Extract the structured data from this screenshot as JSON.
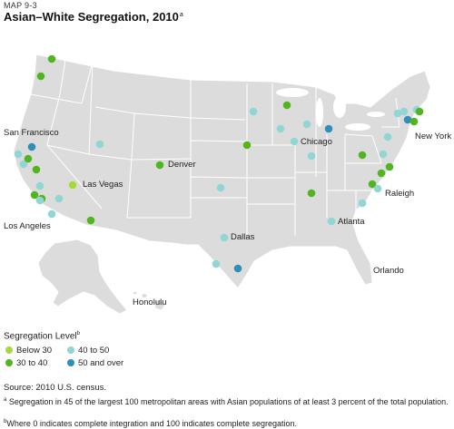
{
  "header": {
    "map_label": "MAP 9-3",
    "title": "Asian–White Segregation, 2010",
    "title_sup": "a"
  },
  "colors": {
    "below30": "#a6d93a",
    "c30to40": "#52b520",
    "c40to50": "#8fd6d4",
    "c50plus": "#2f8fb8",
    "land": "#dcdcdc",
    "border": "#ffffff",
    "water": "#ffffff"
  },
  "cities": [
    {
      "name": "San Francisco"
    },
    {
      "name": "Las Vegas"
    },
    {
      "name": "Los Angeles"
    },
    {
      "name": "Denver"
    },
    {
      "name": "Chicago"
    },
    {
      "name": "New York"
    },
    {
      "name": "Raleigh"
    },
    {
      "name": "Atlanta"
    },
    {
      "name": "Dallas"
    },
    {
      "name": "Orlando"
    },
    {
      "name": "Honolulu"
    }
  ],
  "legend": {
    "title": "Segregation Level",
    "title_sup": "b",
    "items": [
      {
        "label": "Below 30",
        "color_key": "below30"
      },
      {
        "label": "30 to 40",
        "color_key": "c30to40"
      },
      {
        "label": "40 to 50",
        "color_key": "c40to50"
      },
      {
        "label": "50 and over",
        "color_key": "c50plus"
      }
    ]
  },
  "source": "Source: 2010 U.S. census.",
  "notes": {
    "a_marker": "a",
    "a": "Segregation in 45 of the largest 100 metropolitan areas with Asian populations of at least 3 percent of the total population.",
    "b_marker": "b",
    "b": "Where 0 indicates complete integration and 100 indicates complete segregation."
  },
  "metro_points": [
    {
      "level": "c30to40"
    },
    {
      "level": "c30to40"
    },
    {
      "level": "c50plus"
    },
    {
      "level": "c40to50"
    },
    {
      "level": "c40to50"
    },
    {
      "level": "c30to40"
    },
    {
      "level": "c30to40"
    },
    {
      "level": "c40to50"
    },
    {
      "level": "c30to40"
    },
    {
      "level": "c30to40"
    },
    {
      "level": "c40to50"
    },
    {
      "level": "c40to50"
    },
    {
      "level": "c40to50"
    },
    {
      "level": "c40to50"
    },
    {
      "level": "below30"
    },
    {
      "level": "c30to40"
    },
    {
      "level": "c30to40"
    },
    {
      "level": "c30to40"
    },
    {
      "level": "c40to50"
    },
    {
      "level": "c40to50"
    },
    {
      "level": "c30to40"
    },
    {
      "level": "c40to50"
    },
    {
      "level": "c40to50"
    },
    {
      "level": "c50plus"
    },
    {
      "level": "c40to50"
    },
    {
      "level": "c40to50"
    },
    {
      "level": "c50plus"
    },
    {
      "level": "c40to50"
    },
    {
      "level": "c40to50"
    },
    {
      "level": "c30to40"
    },
    {
      "level": "c30to40"
    },
    {
      "level": "c30to40"
    },
    {
      "level": "c50plus"
    },
    {
      "level": "c40to50"
    },
    {
      "level": "c40to50"
    },
    {
      "level": "c40to50"
    },
    {
      "level": "c30to40"
    },
    {
      "level": "c30to40"
    },
    {
      "level": "c40to50"
    },
    {
      "level": "c40to50"
    },
    {
      "level": "c30to40"
    },
    {
      "level": "c30to40"
    },
    {
      "level": "c40to50"
    },
    {
      "level": "c40to50"
    },
    {
      "level": "c40to50"
    }
  ]
}
